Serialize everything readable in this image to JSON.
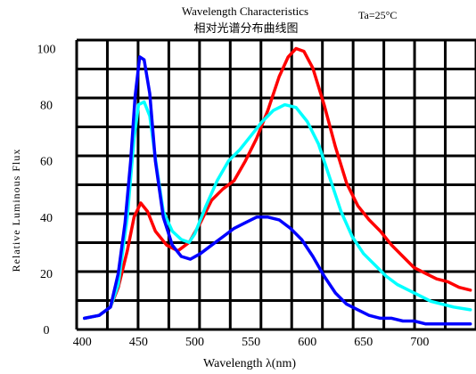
{
  "chart_data": {
    "type": "line",
    "title": "Wavelength Characteristics",
    "subtitle": "相对光谱分布曲线图",
    "condition": "Ta=25°C",
    "xlabel": "Wavelength λ(nm)",
    "ylabel": "Relative Luminous Flux",
    "xlim": [
      395,
      750
    ],
    "ylim": [
      0,
      103
    ],
    "x_ticks": [
      "400",
      "450",
      "500",
      "550",
      "600",
      "650",
      "700"
    ],
    "y_ticks": [
      "0",
      "20",
      "40",
      "60",
      "80",
      "100"
    ],
    "grid": true,
    "series": [
      {
        "color": "#ff0000",
        "points": [
          [
            402,
            4
          ],
          [
            415,
            5
          ],
          [
            425,
            8
          ],
          [
            432,
            15
          ],
          [
            440,
            28
          ],
          [
            446,
            40
          ],
          [
            452,
            45
          ],
          [
            458,
            42
          ],
          [
            465,
            35
          ],
          [
            475,
            30
          ],
          [
            485,
            28
          ],
          [
            495,
            31
          ],
          [
            505,
            38
          ],
          [
            515,
            46
          ],
          [
            525,
            50
          ],
          [
            535,
            53
          ],
          [
            545,
            60
          ],
          [
            555,
            68
          ],
          [
            565,
            78
          ],
          [
            575,
            90
          ],
          [
            583,
            97
          ],
          [
            590,
            100
          ],
          [
            597,
            99
          ],
          [
            605,
            93
          ],
          [
            615,
            80
          ],
          [
            625,
            65
          ],
          [
            635,
            52
          ],
          [
            645,
            44
          ],
          [
            655,
            39
          ],
          [
            665,
            35
          ],
          [
            675,
            30
          ],
          [
            685,
            26
          ],
          [
            695,
            22
          ],
          [
            705,
            20
          ],
          [
            715,
            18
          ],
          [
            725,
            17
          ],
          [
            735,
            15
          ],
          [
            745,
            14
          ]
        ]
      },
      {
        "color": "#00ffff",
        "points": [
          [
            402,
            4
          ],
          [
            415,
            5
          ],
          [
            425,
            8
          ],
          [
            432,
            16
          ],
          [
            440,
            40
          ],
          [
            446,
            68
          ],
          [
            450,
            80
          ],
          [
            455,
            81
          ],
          [
            460,
            76
          ],
          [
            466,
            58
          ],
          [
            472,
            42
          ],
          [
            480,
            35
          ],
          [
            488,
            32
          ],
          [
            495,
            31
          ],
          [
            500,
            34
          ],
          [
            510,
            44
          ],
          [
            520,
            53
          ],
          [
            530,
            60
          ],
          [
            540,
            64
          ],
          [
            550,
            69
          ],
          [
            560,
            74
          ],
          [
            570,
            78
          ],
          [
            580,
            80
          ],
          [
            590,
            79
          ],
          [
            600,
            74
          ],
          [
            610,
            66
          ],
          [
            620,
            54
          ],
          [
            630,
            42
          ],
          [
            640,
            33
          ],
          [
            650,
            27
          ],
          [
            660,
            23
          ],
          [
            670,
            19
          ],
          [
            680,
            16
          ],
          [
            690,
            14
          ],
          [
            700,
            12
          ],
          [
            710,
            10
          ],
          [
            720,
            9
          ],
          [
            730,
            8
          ],
          [
            745,
            7
          ]
        ]
      },
      {
        "color": "#0000ff",
        "points": [
          [
            402,
            4
          ],
          [
            415,
            5
          ],
          [
            425,
            8
          ],
          [
            432,
            20
          ],
          [
            438,
            38
          ],
          [
            443,
            60
          ],
          [
            447,
            83
          ],
          [
            451,
            97
          ],
          [
            455,
            96
          ],
          [
            460,
            84
          ],
          [
            465,
            60
          ],
          [
            472,
            40
          ],
          [
            480,
            30
          ],
          [
            488,
            26
          ],
          [
            496,
            25
          ],
          [
            505,
            27
          ],
          [
            515,
            30
          ],
          [
            525,
            33
          ],
          [
            535,
            36
          ],
          [
            545,
            38
          ],
          [
            555,
            40
          ],
          [
            565,
            40
          ],
          [
            575,
            39
          ],
          [
            585,
            36
          ],
          [
            595,
            32
          ],
          [
            605,
            26
          ],
          [
            615,
            19
          ],
          [
            625,
            13
          ],
          [
            635,
            9
          ],
          [
            645,
            7
          ],
          [
            655,
            5
          ],
          [
            665,
            4
          ],
          [
            675,
            4
          ],
          [
            685,
            3
          ],
          [
            695,
            3
          ],
          [
            705,
            2
          ],
          [
            715,
            2
          ],
          [
            730,
            2
          ],
          [
            745,
            2
          ]
        ]
      }
    ]
  }
}
